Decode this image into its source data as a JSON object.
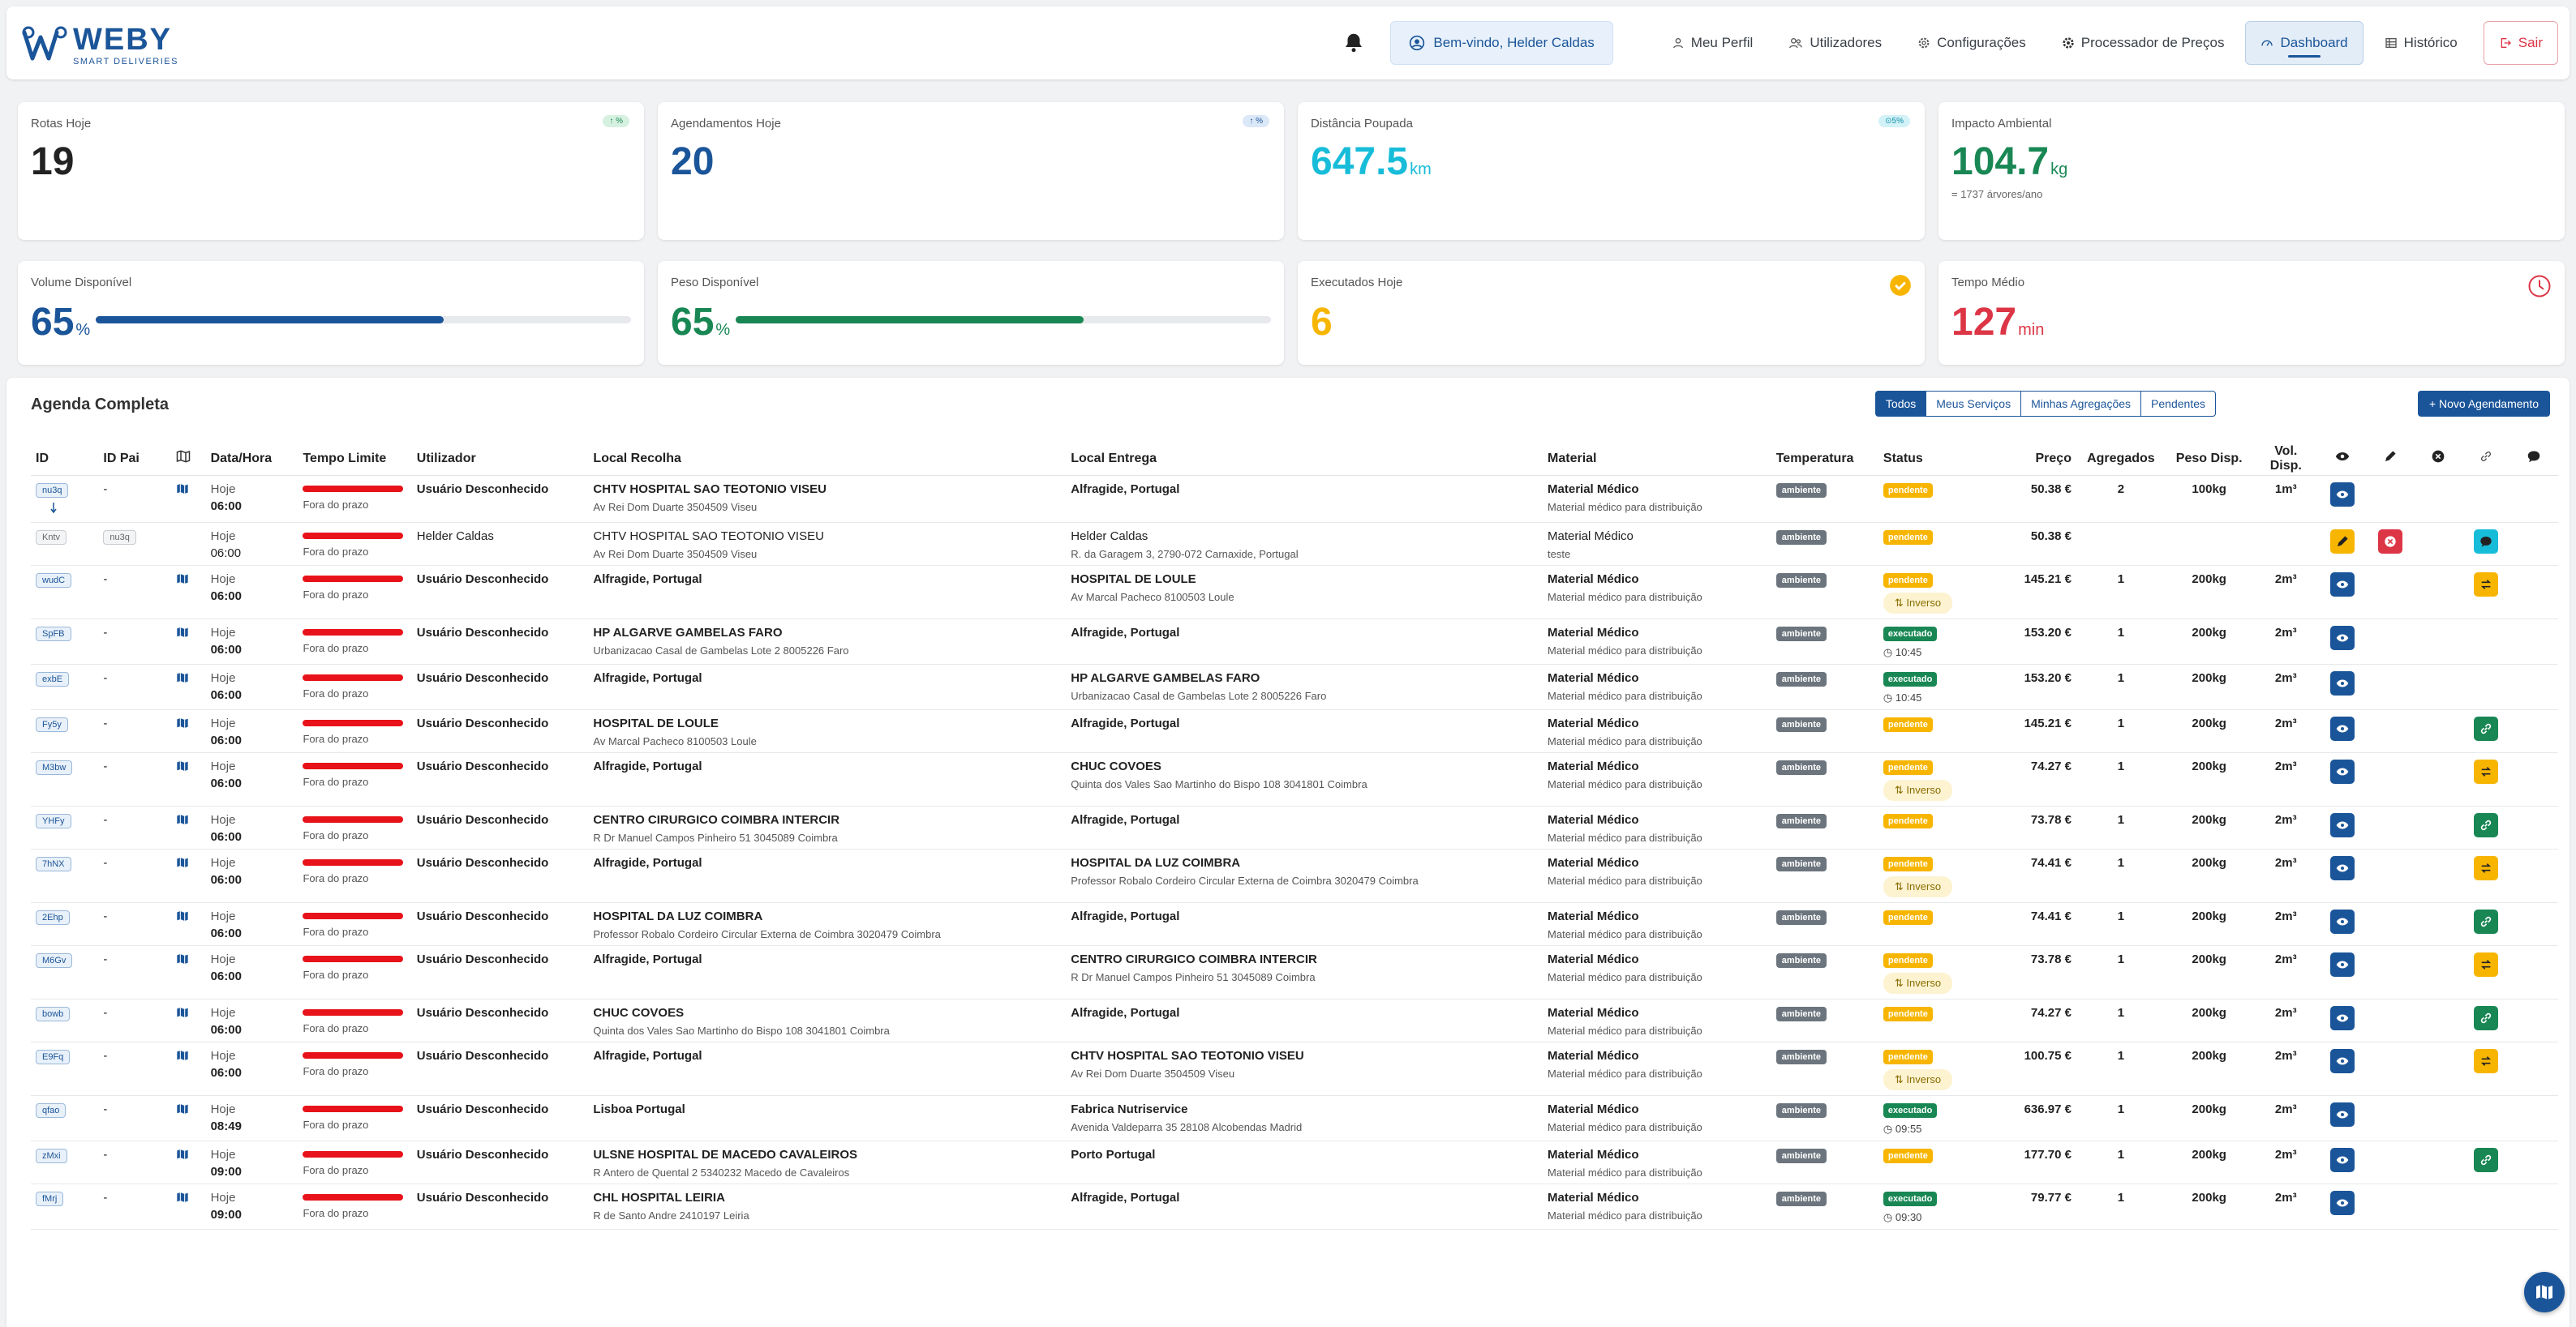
{
  "brand": {
    "name": "WEBY",
    "tagline": "SMART DELIVERIES"
  },
  "nav": {
    "welcome": "Bem-vindo, Helder Caldas",
    "links": [
      "Meu Perfil",
      "Utilizadores",
      "Configurações",
      "Processador de Preços",
      "Dashboard",
      "Histórico"
    ],
    "active": "Dashboard",
    "logout": "Sair"
  },
  "stats": {
    "rotas": {
      "label": "Rotas Hoje",
      "value": "19",
      "chip": "↑ %"
    },
    "agend": {
      "label": "Agendamentos Hoje",
      "value": "20",
      "chip": "↑ %"
    },
    "dist": {
      "label": "Distância Poupada",
      "value": "647.5",
      "unit": "km",
      "chip": "⊙5%"
    },
    "impacto": {
      "label": "Impacto Ambiental",
      "value": "104.7",
      "unit": "kg",
      "sub": "= 1737 árvores/ano"
    },
    "volume": {
      "label": "Volume Disponível",
      "value": "65",
      "unit": "%",
      "fill": 65
    },
    "peso": {
      "label": "Peso Disponível",
      "value": "65",
      "unit": "%",
      "fill": 65
    },
    "exec": {
      "label": "Executados Hoje",
      "value": "6"
    },
    "tempo": {
      "label": "Tempo Médio",
      "value": "127",
      "unit": "min"
    }
  },
  "colors": {
    "primary": "#1b5599",
    "green": "#198754",
    "cyan": "#17bcd9",
    "yellow": "#f7b500",
    "red": "#dc3545"
  },
  "agenda": {
    "title": "Agenda Completa",
    "filters": [
      "Todos",
      "Meus Serviços",
      "Minhas Agregações",
      "Pendentes"
    ],
    "new_button": "+ Novo Agendamento",
    "columns": [
      "ID",
      "ID Pai",
      "",
      "Data/Hora",
      "Tempo Limite",
      "Utilizador",
      "Local Recolha",
      "Local Entrega",
      "Material",
      "Temperatura",
      "Status",
      "Preço",
      "Agregados",
      "Peso Disp.",
      "Vol. Disp."
    ],
    "rows": [
      {
        "id": "nu3q",
        "pai": "-",
        "dia": "Hoje",
        "hora": "06:00",
        "limite": "Fora do prazo",
        "user": "Usuário Desconhecido",
        "rec1": "CHTV HOSPITAL SAO TEOTONIO VISEU",
        "rec2": "Av Rei Dom Duarte 3504509 Viseu",
        "ent1": "Alfragide, Portugal",
        "ent2": "",
        "mat1": "Material Médico",
        "mat2": "Material médico para distribuição",
        "temp": "ambiente",
        "status": "pendente",
        "extra": "",
        "preco": "50.38 €",
        "agr": "2",
        "peso": "100kg",
        "vol": "1m³",
        "actions": [
          "view"
        ],
        "parent": true
      },
      {
        "id": "Kntv",
        "pai": "nu3q",
        "dia": "Hoje",
        "hora": "06:00",
        "limite": "Fora do prazo",
        "user": "Helder Caldas",
        "rec1": "CHTV HOSPITAL SAO TEOTONIO VISEU",
        "rec2": "Av Rei Dom Duarte 3504509 Viseu",
        "ent1": "Helder Caldas",
        "ent2": "R. da Garagem 3, 2790-072 Carnaxide, Portugal",
        "mat1": "Material Médico",
        "mat2": "teste",
        "temp": "ambiente",
        "status": "pendente",
        "extra": "",
        "preco": "50.38 €",
        "agr": "",
        "peso": "",
        "vol": "",
        "actions": [
          "edit",
          "cancel",
          "",
          "chat"
        ],
        "child": true
      },
      {
        "id": "wudC",
        "pai": "-",
        "dia": "Hoje",
        "hora": "06:00",
        "limite": "Fora do prazo",
        "user": "Usuário Desconhecido",
        "rec1": "Alfragide, Portugal",
        "rec2": "",
        "ent1": "HOSPITAL DE LOULE",
        "ent2": "Av Marcal Pacheco 8100503 Loule",
        "mat1": "Material Médico",
        "mat2": "Material médico para distribuição",
        "temp": "ambiente",
        "status": "pendente",
        "extra": "⇅ Inverso",
        "preco": "145.21 €",
        "agr": "1",
        "peso": "200kg",
        "vol": "2m³",
        "actions": [
          "view",
          "",
          "",
          "swap"
        ]
      },
      {
        "id": "SpFB",
        "pai": "-",
        "dia": "Hoje",
        "hora": "06:00",
        "limite": "Fora do prazo",
        "user": "Usuário Desconhecido",
        "rec1": "HP ALGARVE GAMBELAS FARO",
        "rec2": "Urbanizacao Casal de Gambelas Lote 2 8005226 Faro",
        "ent1": "Alfragide, Portugal",
        "ent2": "",
        "mat1": "Material Médico",
        "mat2": "Material médico para distribuição",
        "temp": "ambiente",
        "status": "executado",
        "extra": "◷ 10:45",
        "preco": "153.20 €",
        "agr": "1",
        "peso": "200kg",
        "vol": "2m³",
        "actions": [
          "view"
        ]
      },
      {
        "id": "exbE",
        "pai": "-",
        "dia": "Hoje",
        "hora": "06:00",
        "limite": "Fora do prazo",
        "user": "Usuário Desconhecido",
        "rec1": "Alfragide, Portugal",
        "rec2": "",
        "ent1": "HP ALGARVE GAMBELAS FARO",
        "ent2": "Urbanizacao Casal de Gambelas Lote 2 8005226 Faro",
        "mat1": "Material Médico",
        "mat2": "Material médico para distribuição",
        "temp": "ambiente",
        "status": "executado",
        "extra": "◷ 10:45",
        "preco": "153.20 €",
        "agr": "1",
        "peso": "200kg",
        "vol": "2m³",
        "actions": [
          "view"
        ]
      },
      {
        "id": "Fy5y",
        "pai": "-",
        "dia": "Hoje",
        "hora": "06:00",
        "limite": "Fora do prazo",
        "user": "Usuário Desconhecido",
        "rec1": "HOSPITAL DE LOULE",
        "rec2": "Av Marcal Pacheco 8100503 Loule",
        "ent1": "Alfragide, Portugal",
        "ent2": "",
        "mat1": "Material Médico",
        "mat2": "Material médico para distribuição",
        "temp": "ambiente",
        "status": "pendente",
        "extra": "",
        "preco": "145.21 €",
        "agr": "1",
        "peso": "200kg",
        "vol": "2m³",
        "actions": [
          "view",
          "",
          "",
          "link"
        ]
      },
      {
        "id": "M3bw",
        "pai": "-",
        "dia": "Hoje",
        "hora": "06:00",
        "limite": "Fora do prazo",
        "user": "Usuário Desconhecido",
        "rec1": "Alfragide, Portugal",
        "rec2": "",
        "ent1": "CHUC COVOES",
        "ent2": "Quinta dos Vales Sao Martinho do Bispo 108 3041801 Coimbra",
        "mat1": "Material Médico",
        "mat2": "Material médico para distribuição",
        "temp": "ambiente",
        "status": "pendente",
        "extra": "⇅ Inverso",
        "preco": "74.27 €",
        "agr": "1",
        "peso": "200kg",
        "vol": "2m³",
        "actions": [
          "view",
          "",
          "",
          "swap"
        ]
      },
      {
        "id": "YHFy",
        "pai": "-",
        "dia": "Hoje",
        "hora": "06:00",
        "limite": "Fora do prazo",
        "user": "Usuário Desconhecido",
        "rec1": "CENTRO CIRURGICO COIMBRA INTERCIR",
        "rec2": "R Dr Manuel Campos Pinheiro 51 3045089 Coimbra",
        "ent1": "Alfragide, Portugal",
        "ent2": "",
        "mat1": "Material Médico",
        "mat2": "Material médico para distribuição",
        "temp": "ambiente",
        "status": "pendente",
        "extra": "",
        "preco": "73.78 €",
        "agr": "1",
        "peso": "200kg",
        "vol": "2m³",
        "actions": [
          "view",
          "",
          "",
          "link"
        ]
      },
      {
        "id": "7hNX",
        "pai": "-",
        "dia": "Hoje",
        "hora": "06:00",
        "limite": "Fora do prazo",
        "user": "Usuário Desconhecido",
        "rec1": "Alfragide, Portugal",
        "rec2": "",
        "ent1": "HOSPITAL DA LUZ COIMBRA",
        "ent2": "Professor Robalo Cordeiro Circular Externa de Coimbra 3020479 Coimbra",
        "mat1": "Material Médico",
        "mat2": "Material médico para distribuição",
        "temp": "ambiente",
        "status": "pendente",
        "extra": "⇅ Inverso",
        "preco": "74.41 €",
        "agr": "1",
        "peso": "200kg",
        "vol": "2m³",
        "actions": [
          "view",
          "",
          "",
          "swap"
        ]
      },
      {
        "id": "2Ehp",
        "pai": "-",
        "dia": "Hoje",
        "hora": "06:00",
        "limite": "Fora do prazo",
        "user": "Usuário Desconhecido",
        "rec1": "HOSPITAL DA LUZ COIMBRA",
        "rec2": "Professor Robalo Cordeiro Circular Externa de Coimbra 3020479 Coimbra",
        "ent1": "Alfragide, Portugal",
        "ent2": "",
        "mat1": "Material Médico",
        "mat2": "Material médico para distribuição",
        "temp": "ambiente",
        "status": "pendente",
        "extra": "",
        "preco": "74.41 €",
        "agr": "1",
        "peso": "200kg",
        "vol": "2m³",
        "actions": [
          "view",
          "",
          "",
          "link"
        ]
      },
      {
        "id": "M6Gv",
        "pai": "-",
        "dia": "Hoje",
        "hora": "06:00",
        "limite": "Fora do prazo",
        "user": "Usuário Desconhecido",
        "rec1": "Alfragide, Portugal",
        "rec2": "",
        "ent1": "CENTRO CIRURGICO COIMBRA INTERCIR",
        "ent2": "R Dr Manuel Campos Pinheiro 51 3045089 Coimbra",
        "mat1": "Material Médico",
        "mat2": "Material médico para distribuição",
        "temp": "ambiente",
        "status": "pendente",
        "extra": "⇅ Inverso",
        "preco": "73.78 €",
        "agr": "1",
        "peso": "200kg",
        "vol": "2m³",
        "actions": [
          "view",
          "",
          "",
          "swap"
        ]
      },
      {
        "id": "bowb",
        "pai": "-",
        "dia": "Hoje",
        "hora": "06:00",
        "limite": "Fora do prazo",
        "user": "Usuário Desconhecido",
        "rec1": "CHUC COVOES",
        "rec2": "Quinta dos Vales Sao Martinho do Bispo 108 3041801 Coimbra",
        "ent1": "Alfragide, Portugal",
        "ent2": "",
        "mat1": "Material Médico",
        "mat2": "Material médico para distribuição",
        "temp": "ambiente",
        "status": "pendente",
        "extra": "",
        "preco": "74.27 €",
        "agr": "1",
        "peso": "200kg",
        "vol": "2m³",
        "actions": [
          "view",
          "",
          "",
          "link"
        ]
      },
      {
        "id": "E9Fq",
        "pai": "-",
        "dia": "Hoje",
        "hora": "06:00",
        "limite": "Fora do prazo",
        "user": "Usuário Desconhecido",
        "rec1": "Alfragide, Portugal",
        "rec2": "",
        "ent1": "CHTV HOSPITAL SAO TEOTONIO VISEU",
        "ent2": "Av Rei Dom Duarte 3504509 Viseu",
        "mat1": "Material Médico",
        "mat2": "Material médico para distribuição",
        "temp": "ambiente",
        "status": "pendente",
        "extra": "⇅ Inverso",
        "preco": "100.75 €",
        "agr": "1",
        "peso": "200kg",
        "vol": "2m³",
        "actions": [
          "view",
          "",
          "",
          "swap"
        ]
      },
      {
        "id": "qfao",
        "pai": "-",
        "dia": "Hoje",
        "hora": "08:49",
        "limite": "Fora do prazo",
        "user": "Usuário Desconhecido",
        "rec1": "Lisboa Portugal",
        "rec2": "",
        "ent1": "Fabrica Nutriservice",
        "ent2": "Avenida Valdeparra 35 28108 Alcobendas Madrid",
        "mat1": "Material Médico",
        "mat2": "Material médico para distribuição",
        "temp": "ambiente",
        "status": "executado",
        "extra": "◷ 09:55",
        "preco": "636.97 €",
        "agr": "1",
        "peso": "200kg",
        "vol": "2m³",
        "actions": [
          "view"
        ]
      },
      {
        "id": "zMxi",
        "pai": "-",
        "dia": "Hoje",
        "hora": "09:00",
        "limite": "Fora do prazo",
        "user": "Usuário Desconhecido",
        "rec1": "ULSNE HOSPITAL DE MACEDO CAVALEIROS",
        "rec2": "R Antero de Quental 2 5340232 Macedo de Cavaleiros",
        "ent1": "Porto Portugal",
        "ent2": "",
        "mat1": "Material Médico",
        "mat2": "Material médico para distribuição",
        "temp": "ambiente",
        "status": "pendente",
        "extra": "",
        "preco": "177.70 €",
        "agr": "1",
        "peso": "200kg",
        "vol": "2m³",
        "actions": [
          "view",
          "",
          "",
          "link"
        ]
      },
      {
        "id": "fMrj",
        "pai": "-",
        "dia": "Hoje",
        "hora": "09:00",
        "limite": "Fora do prazo",
        "user": "Usuário Desconhecido",
        "rec1": "CHL HOSPITAL LEIRIA",
        "rec2": "R de Santo Andre 2410197 Leiria",
        "ent1": "Alfragide, Portugal",
        "ent2": "",
        "mat1": "Material Médico",
        "mat2": "Material médico para distribuição",
        "temp": "ambiente",
        "status": "executado",
        "extra": "◷ 09:30",
        "preco": "79.77 €",
        "agr": "1",
        "peso": "200kg",
        "vol": "2m³",
        "actions": [
          "view"
        ]
      }
    ]
  }
}
